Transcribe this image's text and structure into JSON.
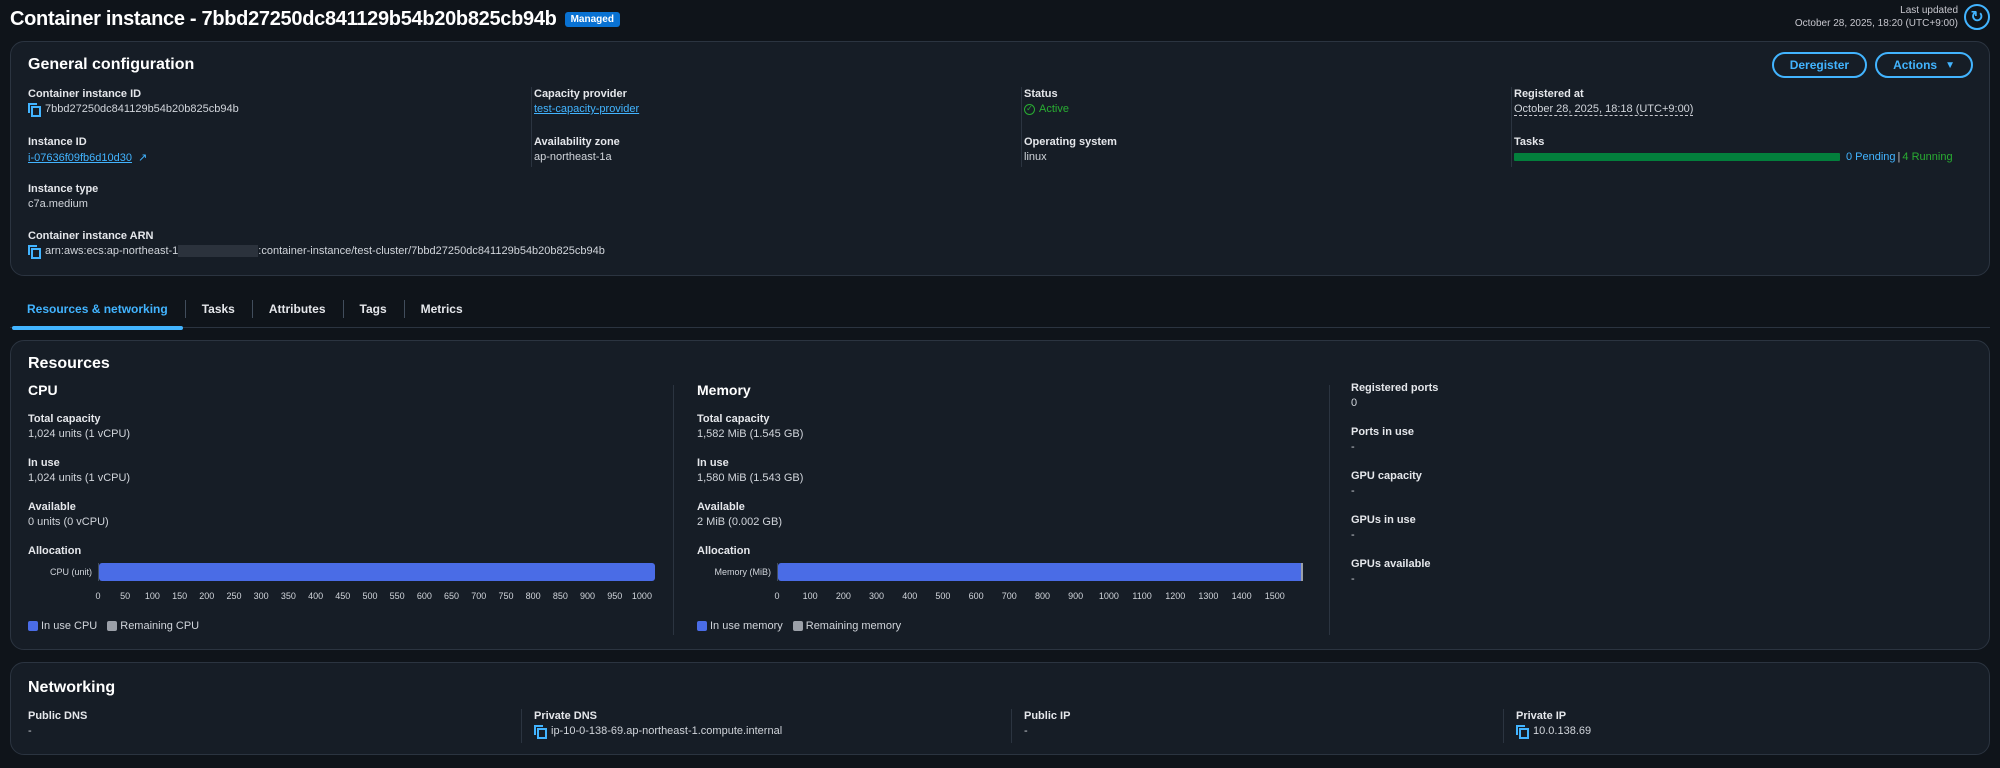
{
  "header": {
    "title": "Container instance - 7bbd27250dc841129b54b20b825cb94b",
    "badge": "Managed",
    "last_updated_label": "Last updated",
    "last_updated_value": "October 28, 2025, 18:20 (UTC+9:00)"
  },
  "general": {
    "title": "General configuration",
    "deregister_label": "Deregister",
    "actions_label": "Actions",
    "container_instance_id": {
      "label": "Container instance ID",
      "value": "7bbd27250dc841129b54b20b825cb94b"
    },
    "capacity_provider": {
      "label": "Capacity provider",
      "value": "test-capacity-provider"
    },
    "status": {
      "label": "Status",
      "value": "Active"
    },
    "registered_at": {
      "label": "Registered at",
      "value": "October 28, 2025, 18:18 (UTC+9:00)"
    },
    "instance_id": {
      "label": "Instance ID",
      "value": "i-07636f09fb6d10d30"
    },
    "availability_zone": {
      "label": "Availability zone",
      "value": "ap-northeast-1a"
    },
    "operating_system": {
      "label": "Operating system",
      "value": "linux"
    },
    "tasks": {
      "label": "Tasks",
      "pending": "0 Pending",
      "separator": "|",
      "running": "4 Running"
    },
    "instance_type": {
      "label": "Instance type",
      "value": "c7a.medium"
    },
    "arn": {
      "label": "Container instance ARN",
      "prefix": "arn:aws:ecs:ap-northeast-1",
      "suffix": ":container-instance/test-cluster/7bbd27250dc841129b54b20b825cb94b"
    }
  },
  "tabs": [
    {
      "label": "Resources & networking",
      "active": true
    },
    {
      "label": "Tasks"
    },
    {
      "label": "Attributes"
    },
    {
      "label": "Tags"
    },
    {
      "label": "Metrics"
    }
  ],
  "resources": {
    "title": "Resources",
    "cpu": {
      "title": "CPU",
      "total_label": "Total capacity",
      "total_value": "1,024 units (1 vCPU)",
      "inuse_label": "In use",
      "inuse_value": "1,024 units (1 vCPU)",
      "available_label": "Available",
      "available_value": "0 units (0 vCPU)",
      "allocation_label": "Allocation",
      "bar_label": "CPU (unit)",
      "legend_inuse": "In use CPU",
      "legend_remaining": "Remaining CPU"
    },
    "memory": {
      "title": "Memory",
      "total_label": "Total capacity",
      "total_value": "1,582 MiB (1.545 GB)",
      "inuse_label": "In use",
      "inuse_value": "1,580 MiB (1.543 GB)",
      "available_label": "Available",
      "available_value": "2 MiB (0.002 GB)",
      "allocation_label": "Allocation",
      "bar_label": "Memory (MiB)",
      "legend_inuse": "In use memory",
      "legend_remaining": "Remaining memory"
    },
    "other": {
      "registered_ports": {
        "label": "Registered ports",
        "value": "0"
      },
      "ports_in_use": {
        "label": "Ports in use",
        "value": "-"
      },
      "gpu_capacity": {
        "label": "GPU capacity",
        "value": "-"
      },
      "gpus_in_use": {
        "label": "GPUs in use",
        "value": "-"
      },
      "gpus_available": {
        "label": "GPUs available",
        "value": "-"
      }
    }
  },
  "networking": {
    "title": "Networking",
    "public_dns": {
      "label": "Public DNS",
      "value": "-"
    },
    "private_dns": {
      "label": "Private DNS",
      "value": "ip-10-0-138-69.ap-northeast-1.compute.internal"
    },
    "public_ip": {
      "label": "Public IP",
      "value": "-"
    },
    "private_ip": {
      "label": "Private IP",
      "value": "10.0.138.69"
    }
  },
  "chart_data": [
    {
      "type": "bar",
      "title": "CPU Allocation",
      "categories": [
        "CPU (unit)"
      ],
      "series": [
        {
          "name": "In use CPU",
          "values": [
            1024
          ],
          "color": "#4a6ce6"
        },
        {
          "name": "Remaining CPU",
          "values": [
            0
          ],
          "color": "#9ba0a8"
        }
      ],
      "xlim": [
        0,
        1024
      ],
      "ticks": [
        0,
        50,
        100,
        150,
        200,
        250,
        300,
        350,
        400,
        450,
        500,
        550,
        600,
        650,
        700,
        750,
        800,
        850,
        900,
        950,
        1000
      ],
      "orientation": "horizontal-stacked",
      "legend_position": "bottom"
    },
    {
      "type": "bar",
      "title": "Memory Allocation",
      "categories": [
        "Memory (MiB)"
      ],
      "series": [
        {
          "name": "In use memory",
          "values": [
            1580
          ],
          "color": "#4a6ce6"
        },
        {
          "name": "Remaining memory",
          "values": [
            2
          ],
          "color": "#9ba0a8"
        }
      ],
      "xlim": [
        0,
        1582
      ],
      "ticks": [
        0,
        100,
        200,
        300,
        400,
        500,
        600,
        700,
        800,
        900,
        1000,
        1100,
        1200,
        1300,
        1400,
        1500
      ],
      "orientation": "horizontal-stacked",
      "legend_position": "bottom"
    }
  ]
}
